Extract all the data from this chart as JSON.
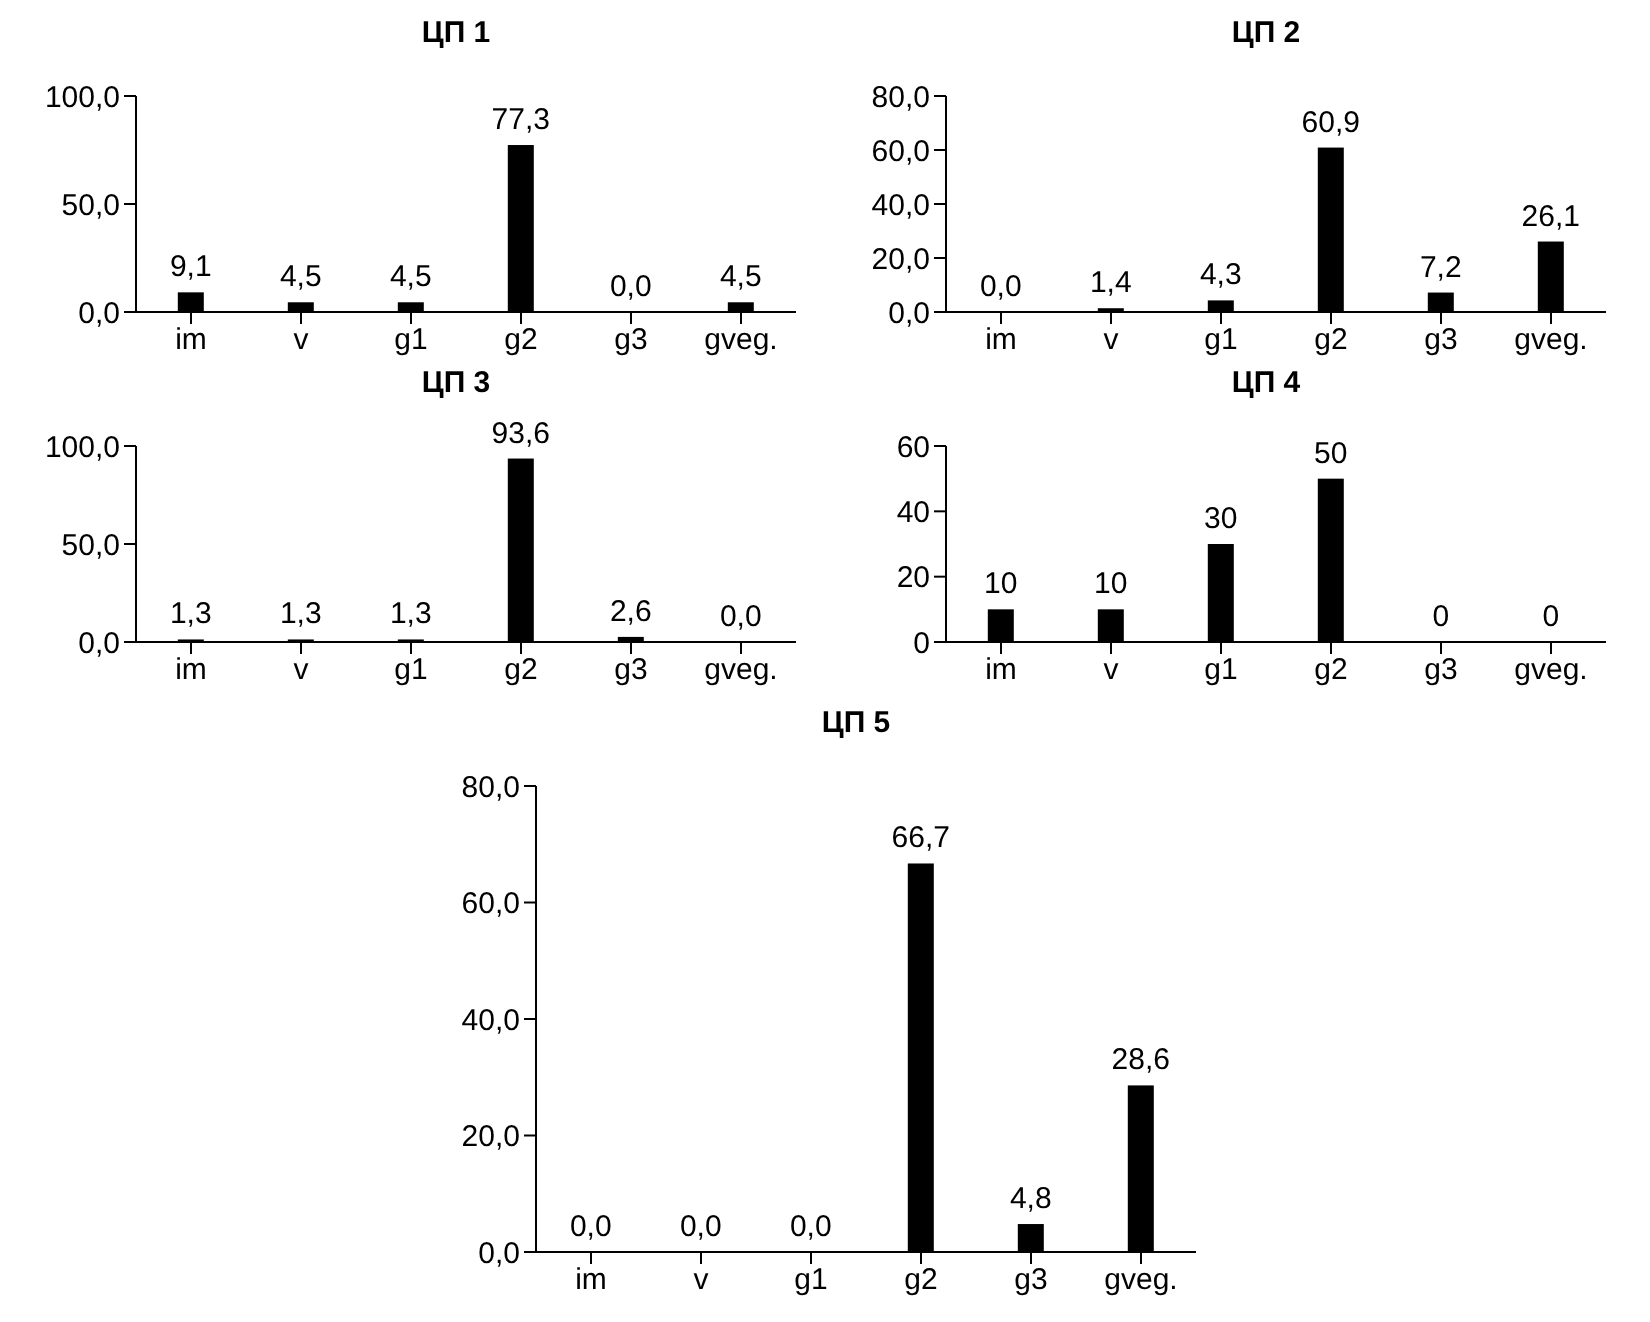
{
  "chart_data": [
    {
      "type": "bar",
      "title": "ЦП 1",
      "categories": [
        "im",
        "v",
        "g1",
        "g2",
        "g3",
        "gveg."
      ],
      "values": [
        9.1,
        4.5,
        4.5,
        77.3,
        0.0,
        4.5
      ],
      "color": "#000000",
      "value_labels": [
        "9,1",
        "4,5",
        "4,5",
        "77,3",
        "0,0",
        "4,5"
      ],
      "ylim": [
        0,
        100
      ],
      "yticks": [
        {
          "value": 0,
          "label": "0,0"
        },
        {
          "value": 50,
          "label": "50,0"
        },
        {
          "value": 100,
          "label": "100,0"
        }
      ],
      "grid": false,
      "legend": false
    },
    {
      "type": "bar",
      "title": "ЦП 2",
      "categories": [
        "im",
        "v",
        "g1",
        "g2",
        "g3",
        "gveg."
      ],
      "values": [
        0.0,
        1.4,
        4.3,
        60.9,
        7.2,
        26.1
      ],
      "color": "#000000",
      "value_labels": [
        "0,0",
        "1,4",
        "4,3",
        "60,9",
        "7,2",
        "26,1"
      ],
      "ylim": [
        0,
        80
      ],
      "yticks": [
        {
          "value": 0,
          "label": "0,0"
        },
        {
          "value": 20,
          "label": "20,0"
        },
        {
          "value": 40,
          "label": "40,0"
        },
        {
          "value": 60,
          "label": "60,0"
        },
        {
          "value": 80,
          "label": "80,0"
        }
      ],
      "grid": false,
      "legend": false
    },
    {
      "type": "bar",
      "title": "ЦП 3",
      "categories": [
        "im",
        "v",
        "g1",
        "g2",
        "g3",
        "gveg."
      ],
      "values": [
        1.3,
        1.3,
        1.3,
        93.6,
        2.6,
        0.0
      ],
      "color": "#000000",
      "value_labels": [
        "1,3",
        "1,3",
        "1,3",
        "93,6",
        "2,6",
        "0,0"
      ],
      "ylim": [
        0,
        100
      ],
      "yticks": [
        {
          "value": 0,
          "label": "0,0"
        },
        {
          "value": 50,
          "label": "50,0"
        },
        {
          "value": 100,
          "label": "100,0"
        }
      ],
      "grid": false,
      "legend": false
    },
    {
      "type": "bar",
      "title": "ЦП 4",
      "categories": [
        "im",
        "v",
        "g1",
        "g2",
        "g3",
        "gveg."
      ],
      "values": [
        10,
        10,
        30,
        50,
        0,
        0
      ],
      "color": "#000000",
      "data_labels": true,
      "ylim": [
        0,
        60
      ],
      "yticks": [
        0,
        20,
        40,
        60
      ],
      "grid": false,
      "legend": false
    },
    {
      "type": "bar",
      "title": "ЦП 5",
      "categories": [
        "im",
        "v",
        "g1",
        "g2",
        "g3",
        "gveg."
      ],
      "values": [
        0.0,
        0.0,
        0.0,
        66.7,
        4.8,
        28.6
      ],
      "color": "#000000",
      "value_labels": [
        "0,0",
        "0,0",
        "0,0",
        "66,7",
        "4,8",
        "28,6"
      ],
      "ylim": [
        0,
        80
      ],
      "yticks": [
        {
          "value": 0,
          "label": "0,0"
        },
        {
          "value": 20,
          "label": "20,0"
        },
        {
          "value": 40,
          "label": "40,0"
        },
        {
          "value": 60,
          "label": "60,0"
        },
        {
          "value": 80,
          "label": "80,0"
        }
      ],
      "grid": false,
      "legend": false
    }
  ]
}
